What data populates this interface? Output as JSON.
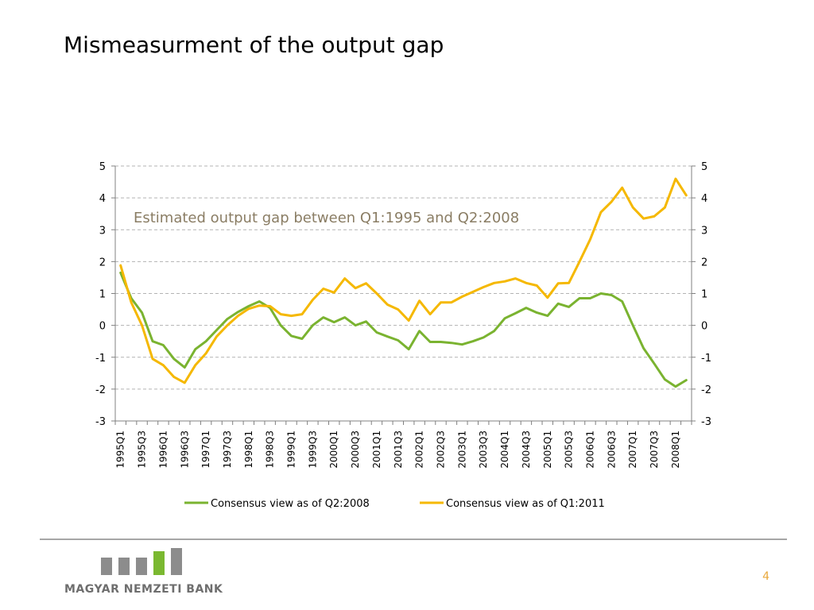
{
  "slide": {
    "title": "Mismeasurment of the output gap",
    "page_number": "4"
  },
  "logo": {
    "text": "MAGYAR NEMZETI BANK",
    "bar_colors": [
      "#8c8c8c",
      "#8c8c8c",
      "#8c8c8c",
      "#7ab830",
      "#8c8c8c"
    ]
  },
  "chart_data": {
    "type": "line",
    "annotation": "Estimated output gap between Q1:1995 and Q2:2008",
    "x": [
      "1995Q1",
      "1995Q2",
      "1995Q3",
      "1995Q4",
      "1996Q1",
      "1996Q2",
      "1996Q3",
      "1996Q4",
      "1997Q1",
      "1997Q2",
      "1997Q3",
      "1997Q4",
      "1998Q1",
      "1998Q2",
      "1998Q3",
      "1998Q4",
      "1999Q1",
      "1999Q2",
      "1999Q3",
      "1999Q4",
      "2000Q1",
      "2000Q2",
      "2000Q3",
      "2000Q4",
      "2001Q1",
      "2001Q2",
      "2001Q3",
      "2001Q4",
      "2002Q1",
      "2002Q2",
      "2002Q3",
      "2002Q4",
      "2003Q1",
      "2003Q2",
      "2003Q3",
      "2003Q4",
      "2004Q1",
      "2004Q2",
      "2004Q3",
      "2004Q4",
      "2005Q1",
      "2005Q2",
      "2005Q3",
      "2005Q4",
      "2006Q1",
      "2006Q2",
      "2006Q3",
      "2006Q4",
      "2007Q1",
      "2007Q2",
      "2007Q3",
      "2007Q4",
      "2008Q1",
      "2008Q2"
    ],
    "x_tick_labels": [
      "1995Q1",
      "1995Q3",
      "1996Q1",
      "1996Q3",
      "1997Q1",
      "1997Q3",
      "1998Q1",
      "1998Q3",
      "1999Q1",
      "1999Q3",
      "2000Q1",
      "2000Q3",
      "2001Q1",
      "2001Q3",
      "2002Q1",
      "2002Q3",
      "2003Q1",
      "2003Q3",
      "2004Q1",
      "2004Q3",
      "2005Q1",
      "2005Q3",
      "2006Q1",
      "2006Q3",
      "2007Q1",
      "2007Q3",
      "2008Q1"
    ],
    "y_ticks": [
      "5",
      "4",
      "3",
      "2",
      "1",
      "0",
      "-1",
      "-2",
      "-3"
    ],
    "ylim": [
      -3,
      5
    ],
    "grid": true,
    "grid_style": "dashed",
    "secondary_y_axis": true,
    "legend_position": "bottom",
    "series": [
      {
        "name": "Consensus view as of Q2:2008",
        "color": "#7ab330",
        "values": [
          1.65,
          0.85,
          0.4,
          -0.5,
          -0.62,
          -1.05,
          -1.32,
          -0.75,
          -0.5,
          -0.15,
          0.2,
          0.42,
          0.6,
          0.75,
          0.55,
          0.0,
          -0.33,
          -0.42,
          0.0,
          0.25,
          0.1,
          0.25,
          0.0,
          0.12,
          -0.22,
          -0.35,
          -0.47,
          -0.75,
          -0.18,
          -0.52,
          -0.52,
          -0.55,
          -0.6,
          -0.5,
          -0.38,
          -0.18,
          0.22,
          0.38,
          0.55,
          0.4,
          0.3,
          0.68,
          0.58,
          0.85,
          0.85,
          1.0,
          0.95,
          0.75,
          0.0,
          -0.72,
          -1.2,
          -1.7,
          -1.92,
          -1.72
        ]
      },
      {
        "name": "Consensus view as of Q1:2011",
        "color": "#f5b800",
        "values": [
          1.88,
          0.72,
          0.0,
          -1.05,
          -1.25,
          -1.62,
          -1.8,
          -1.25,
          -0.88,
          -0.35,
          0.0,
          0.3,
          0.52,
          0.62,
          0.6,
          0.35,
          0.3,
          0.35,
          0.8,
          1.15,
          1.03,
          1.47,
          1.17,
          1.32,
          1.0,
          0.65,
          0.5,
          0.15,
          0.77,
          0.35,
          0.72,
          0.72,
          0.9,
          1.05,
          1.2,
          1.33,
          1.38,
          1.47,
          1.33,
          1.25,
          0.87,
          1.32,
          1.33,
          2.0,
          2.7,
          3.55,
          3.88,
          4.32,
          3.7,
          3.35,
          3.42,
          3.7,
          4.6,
          4.08
        ]
      }
    ]
  }
}
